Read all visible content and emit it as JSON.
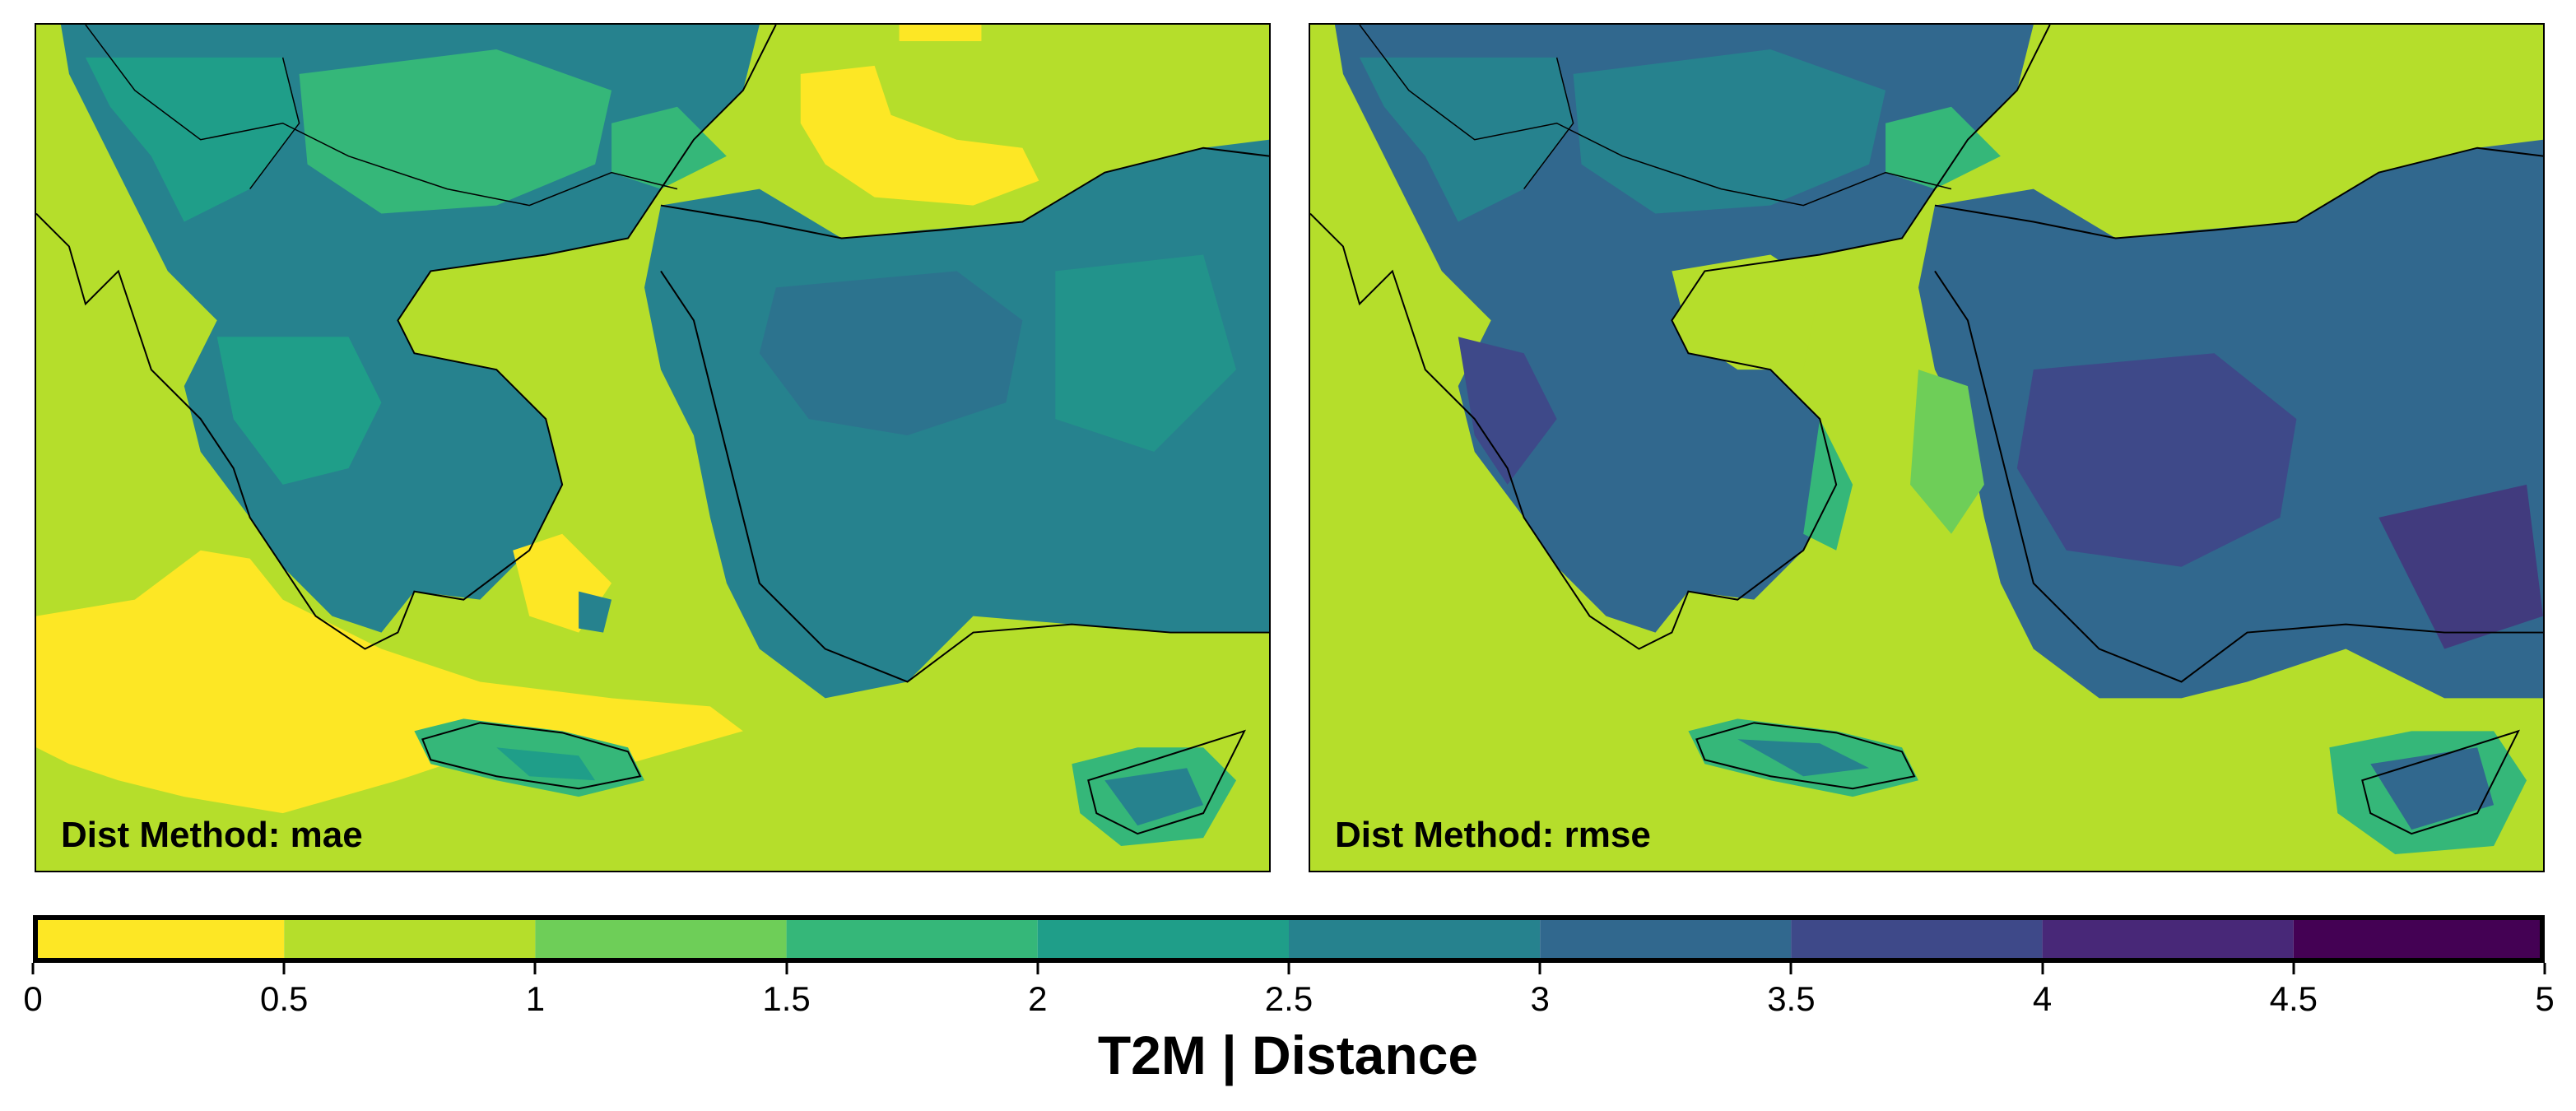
{
  "panels": [
    {
      "id": "mae",
      "label": "Dist Method: mae"
    },
    {
      "id": "rmse",
      "label": "Dist Method: rmse"
    }
  ],
  "colorbar": {
    "title": "T2M | Distance",
    "ticks": [
      "0",
      "0.5",
      "1",
      "1.5",
      "2",
      "2.5",
      "3",
      "3.5",
      "4",
      "4.5",
      "5"
    ],
    "bins": [
      {
        "range": [
          0,
          0.5
        ],
        "color": "#fde725"
      },
      {
        "range": [
          0.5,
          1
        ],
        "color": "#b5de2b"
      },
      {
        "range": [
          1,
          1.5
        ],
        "color": "#6ece58"
      },
      {
        "range": [
          1.5,
          2
        ],
        "color": "#35b779"
      },
      {
        "range": [
          2,
          2.5
        ],
        "color": "#1f9e89"
      },
      {
        "range": [
          2.5,
          3
        ],
        "color": "#26828e"
      },
      {
        "range": [
          3,
          3.5
        ],
        "color": "#31688e"
      },
      {
        "range": [
          3.5,
          4
        ],
        "color": "#3e4989"
      },
      {
        "range": [
          4,
          4.5
        ],
        "color": "#482878"
      },
      {
        "range": [
          4.5,
          5
        ],
        "color": "#440154"
      }
    ]
  },
  "colors": {
    "coastline": "#000000",
    "frame": "#000000"
  }
}
